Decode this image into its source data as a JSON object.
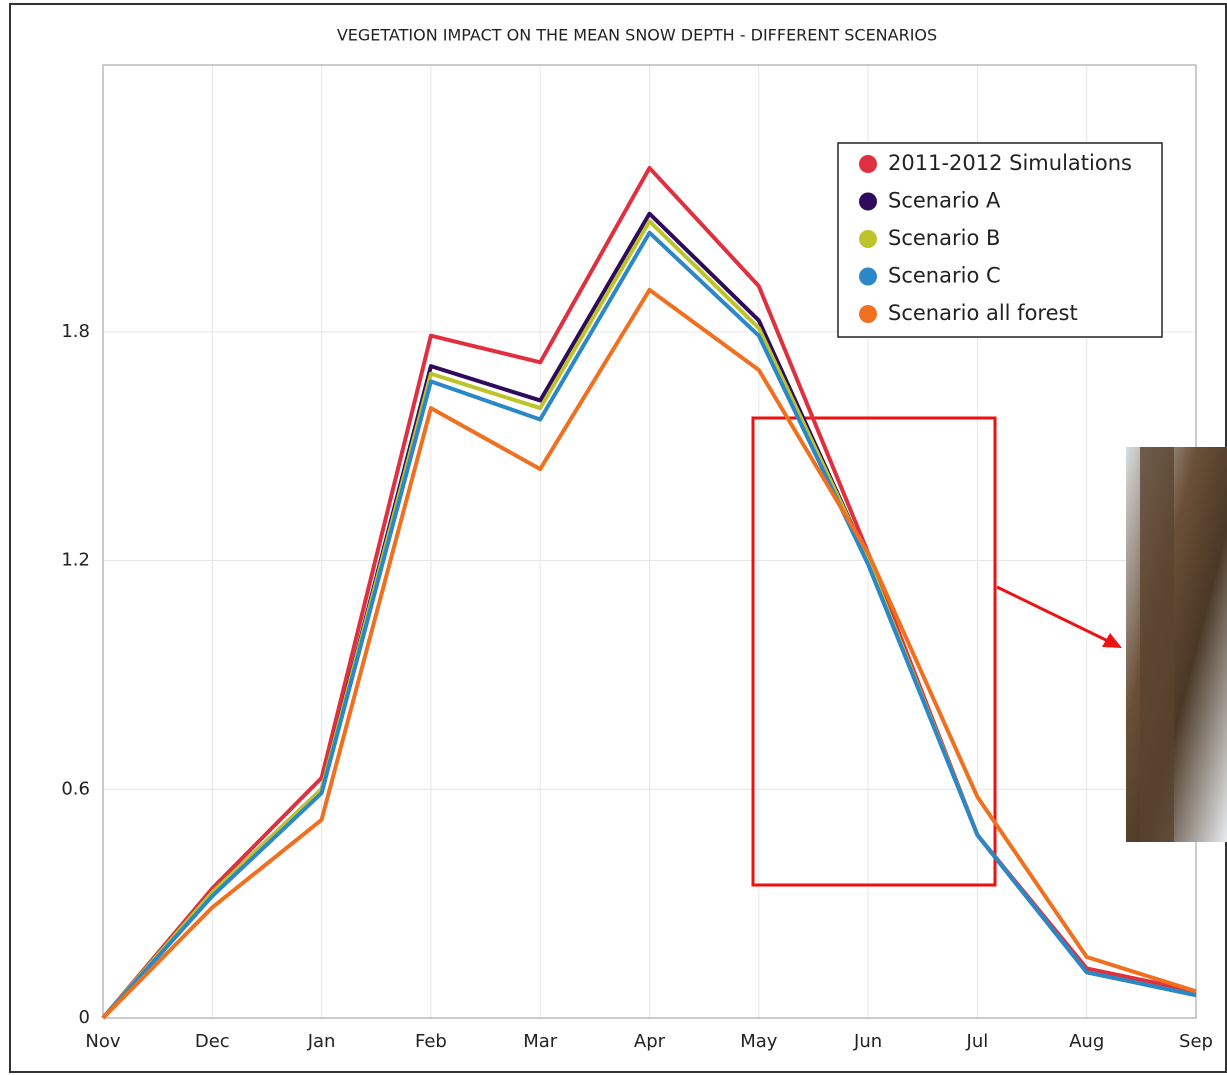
{
  "chart_data": {
    "type": "line",
    "title": "VEGETATION IMPACT ON THE MEAN SNOW DEPTH - DIFFERENT SCENARIOS",
    "categories": [
      "Nov",
      "Dec",
      "Jan",
      "Feb",
      "Mar",
      "Apr",
      "May",
      "Jun",
      "Jul",
      "Aug",
      "Sep"
    ],
    "series": [
      {
        "name": "2011-2012 Simulations",
        "color": "#e0303f",
        "values": [
          0,
          0.34,
          0.63,
          1.79,
          1.72,
          2.23,
          1.92,
          1.22,
          0.48,
          0.13,
          0.07
        ]
      },
      {
        "name": "Scenario A",
        "color": "#2e0b5c",
        "values": [
          0,
          0.33,
          0.6,
          1.71,
          1.62,
          2.11,
          1.83,
          1.2,
          0.48,
          0.12,
          0.06
        ]
      },
      {
        "name": "Scenario B",
        "color": "#bcc42a",
        "values": [
          0,
          0.33,
          0.6,
          1.69,
          1.6,
          2.09,
          1.81,
          1.2,
          0.48,
          0.12,
          0.06
        ]
      },
      {
        "name": "Scenario C",
        "color": "#2a87c8",
        "values": [
          0,
          0.32,
          0.59,
          1.67,
          1.57,
          2.06,
          1.79,
          1.19,
          0.48,
          0.12,
          0.06
        ]
      },
      {
        "name": "Scenario all forest",
        "color": "#f07020",
        "values": [
          0,
          0.29,
          0.52,
          1.6,
          1.44,
          1.91,
          1.7,
          1.22,
          0.58,
          0.16,
          0.07
        ]
      }
    ],
    "ylim": [
      0,
      2.5
    ],
    "yticks": [
      0,
      0.6,
      1.2,
      1.8
    ],
    "grid": true,
    "legend": "upper right"
  }
}
